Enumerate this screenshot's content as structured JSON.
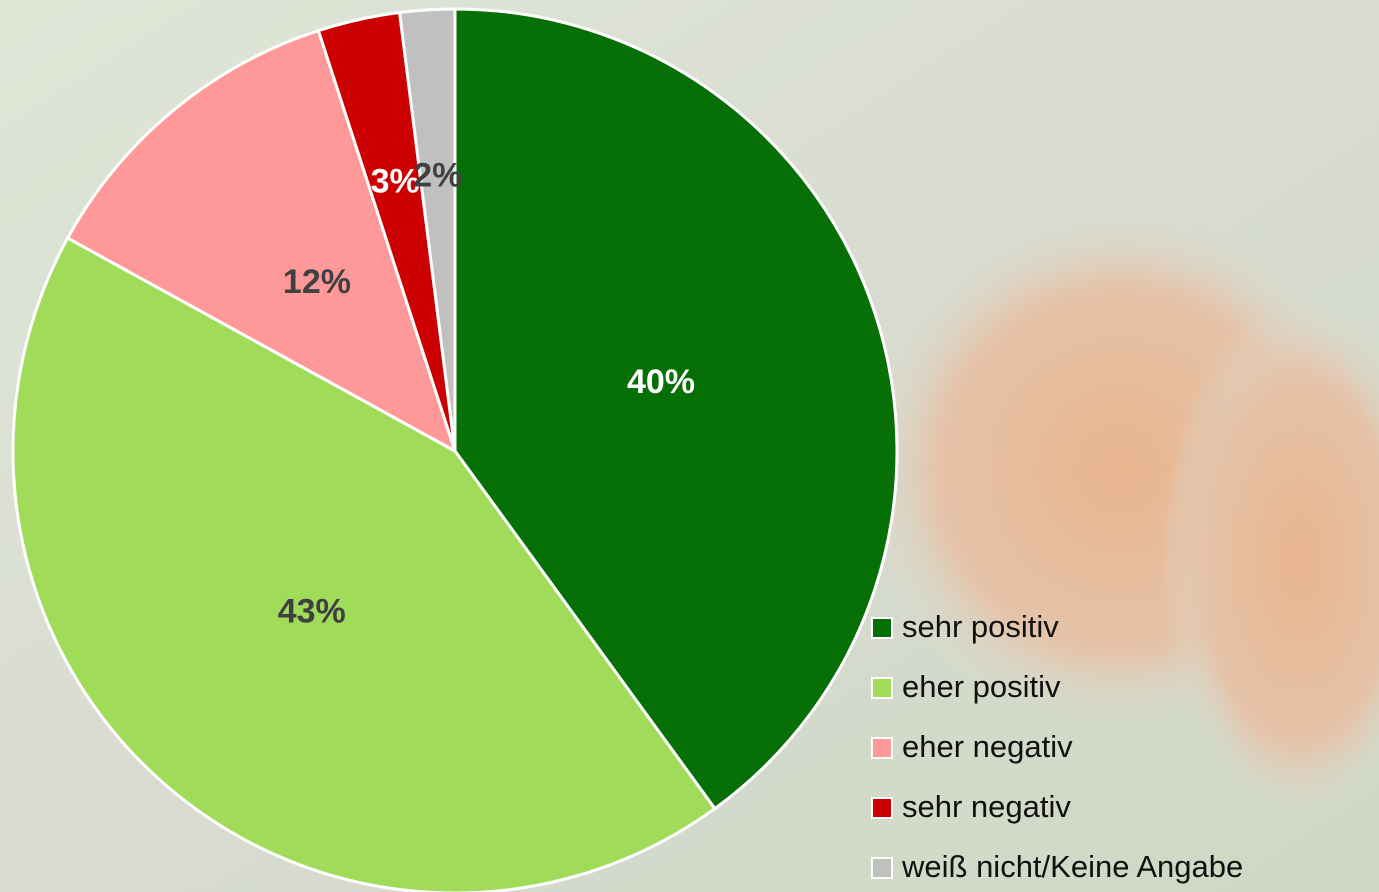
{
  "chart_data": {
    "type": "pie",
    "categories": [
      "sehr positiv",
      "eher positiv",
      "eher negativ",
      "sehr negativ",
      "weiß nicht/Keine Angabe"
    ],
    "values": [
      40,
      43,
      12,
      3,
      2
    ],
    "value_labels": [
      "40%",
      "43%",
      "12%",
      "3%",
      "2%"
    ],
    "colors": [
      "#067006",
      "#a0dc5a",
      "#ff9999",
      "#cc0000",
      "#c0c0c0"
    ],
    "label_colors": [
      "#ffffff",
      "#404040",
      "#404040",
      "#ffffff",
      "#404040"
    ],
    "start_angle": 0,
    "direction": "clockwise",
    "legend": "bottom-right"
  }
}
